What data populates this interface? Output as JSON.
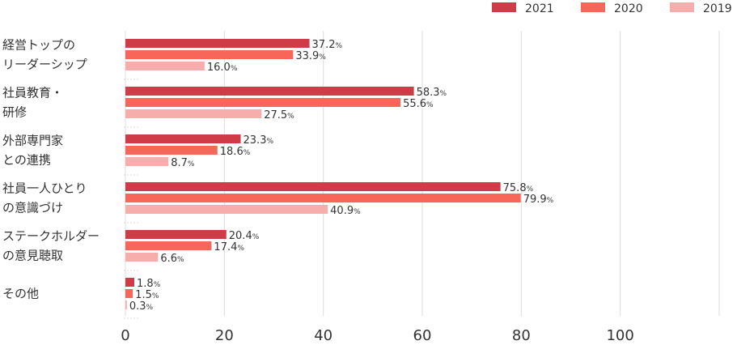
{
  "chart_data": {
    "type": "bar",
    "orientation": "horizontal",
    "categories": [
      [
        "経営トップの",
        "リーダーシップ"
      ],
      [
        "社員教育・",
        "研修"
      ],
      [
        "外部専門家",
        "との連携"
      ],
      [
        "社員一人ひとり",
        "の意識づけ"
      ],
      [
        "ステークホルダー",
        "の意見聴取"
      ],
      [
        "その他"
      ]
    ],
    "series": [
      {
        "name": "2021",
        "color": "#cf3b47",
        "values": [
          37.2,
          58.3,
          23.3,
          75.8,
          20.4,
          1.8
        ]
      },
      {
        "name": "2020",
        "color": "#f86659",
        "values": [
          33.9,
          55.6,
          18.6,
          79.9,
          17.4,
          1.5
        ]
      },
      {
        "name": "2019",
        "color": "#f7adac",
        "values": [
          16.0,
          27.5,
          8.7,
          40.9,
          6.6,
          0.3
        ]
      }
    ],
    "value_suffix": "%",
    "xlim": [
      0,
      120
    ],
    "xticks": [
      0,
      20,
      40,
      60,
      80,
      100
    ],
    "grid": true,
    "legend_position": "top-right"
  }
}
